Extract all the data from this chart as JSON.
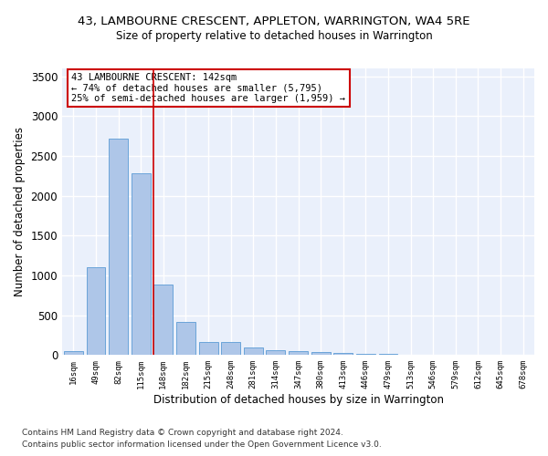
{
  "title": "43, LAMBOURNE CRESCENT, APPLETON, WARRINGTON, WA4 5RE",
  "subtitle": "Size of property relative to detached houses in Warrington",
  "xlabel": "Distribution of detached houses by size in Warrington",
  "ylabel": "Number of detached properties",
  "footer1": "Contains HM Land Registry data © Crown copyright and database right 2024.",
  "footer2": "Contains public sector information licensed under the Open Government Licence v3.0.",
  "bar_labels": [
    "16sqm",
    "49sqm",
    "82sqm",
    "115sqm",
    "148sqm",
    "182sqm",
    "215sqm",
    "248sqm",
    "281sqm",
    "314sqm",
    "347sqm",
    "380sqm",
    "413sqm",
    "446sqm",
    "479sqm",
    "513sqm",
    "546sqm",
    "579sqm",
    "612sqm",
    "645sqm",
    "678sqm"
  ],
  "bar_values": [
    50,
    1100,
    2720,
    2280,
    880,
    415,
    165,
    160,
    90,
    60,
    50,
    35,
    25,
    20,
    10,
    5,
    3,
    2,
    1,
    1,
    0
  ],
  "bar_color": "#aec6e8",
  "bar_edge_color": "#5b9bd5",
  "bg_color": "#eaf0fb",
  "grid_color": "#ffffff",
  "vline_index": 4,
  "vline_color": "#cc0000",
  "annotation_line1": "43 LAMBOURNE CRESCENT: 142sqm",
  "annotation_line2": "← 74% of detached houses are smaller (5,795)",
  "annotation_line3": "25% of semi-detached houses are larger (1,959) →",
  "annotation_box_color": "#ffffff",
  "annotation_box_edge": "#cc0000",
  "ylim": [
    0,
    3600
  ],
  "yticks": [
    0,
    500,
    1000,
    1500,
    2000,
    2500,
    3000,
    3500
  ]
}
